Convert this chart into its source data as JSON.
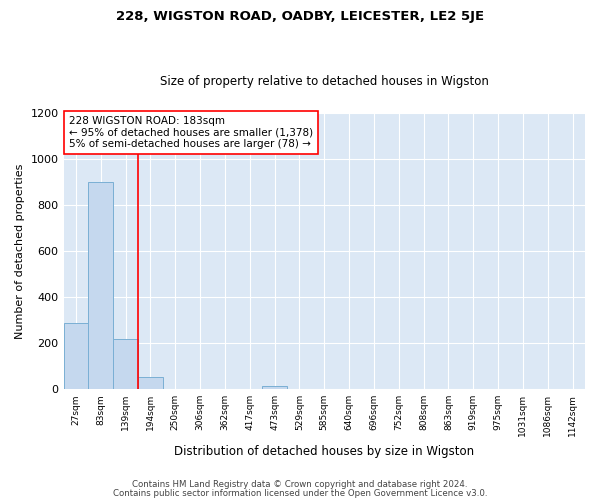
{
  "title1": "228, WIGSTON ROAD, OADBY, LEICESTER, LE2 5JE",
  "title2": "Size of property relative to detached houses in Wigston",
  "xlabel": "Distribution of detached houses by size in Wigston",
  "ylabel": "Number of detached properties",
  "footer1": "Contains HM Land Registry data © Crown copyright and database right 2024.",
  "footer2": "Contains public sector information licensed under the Open Government Licence v3.0.",
  "bins": [
    "27sqm",
    "83sqm",
    "139sqm",
    "194sqm",
    "250sqm",
    "306sqm",
    "362sqm",
    "417sqm",
    "473sqm",
    "529sqm",
    "585sqm",
    "640sqm",
    "696sqm",
    "752sqm",
    "808sqm",
    "863sqm",
    "919sqm",
    "975sqm",
    "1031sqm",
    "1086sqm",
    "1142sqm"
  ],
  "bar_values": [
    290,
    900,
    220,
    55,
    0,
    0,
    0,
    0,
    15,
    0,
    0,
    0,
    0,
    0,
    0,
    0,
    0,
    0,
    0,
    0,
    0
  ],
  "bar_color": "#c5d8ee",
  "bar_edge_color": "#7aafd4",
  "ylim": [
    0,
    1200
  ],
  "yticks": [
    0,
    200,
    400,
    600,
    800,
    1000,
    1200
  ],
  "red_line_x": 3,
  "annotation_text": "228 WIGSTON ROAD: 183sqm\n← 95% of detached houses are smaller (1,378)\n5% of semi-detached houses are larger (78) →",
  "bg_color": "#dce8f5",
  "grid_color": "#ffffff",
  "fig_bg": "#ffffff"
}
